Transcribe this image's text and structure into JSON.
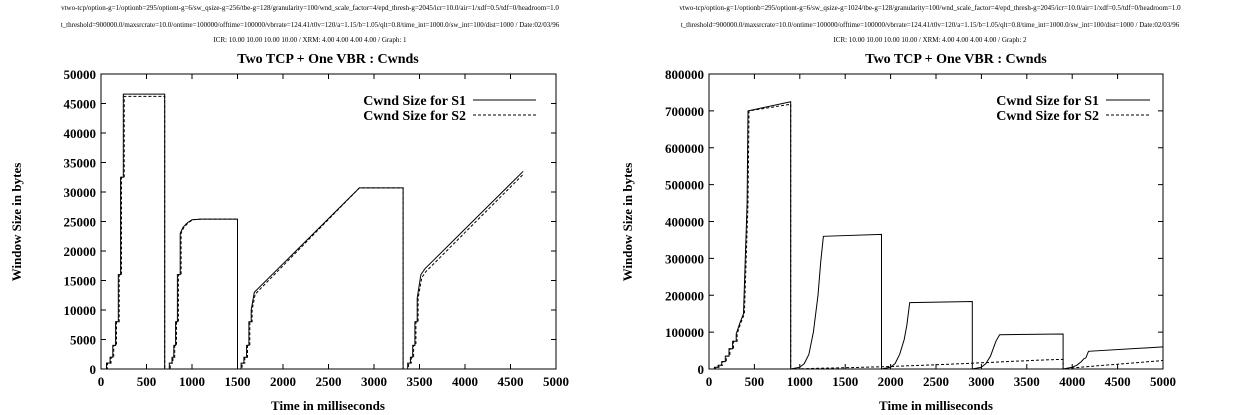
{
  "chart_data": [
    {
      "type": "line",
      "header_lines": [
        "vtwo-tcp/option-g=1/optionb=295/optiont-g=6/sw_qsize-g=256/tbe-g=128/granularity=100/wnd_scale_factor=4/epd_thresh-g=2045/icr=10.0/air=1/xdf=0.5/tdf=0/headroom=1.0",
        "t_threshold=900000.0/maxsrcrate=10.0/ontime=100000/offtime=100000/vbrrate=124.41/t0v=120/a=1.15/b=1.05/qlt=0.8/time_int=1000.0/sw_int=100/dist=1000 / Date:02/03/96",
        "ICR: 10.00 10.00 10.00 10.00 / XRM: 4.00 4.00 4.00 4.00 / Graph: 1"
      ],
      "title": "Two TCP + One VBR : Cwnds",
      "xlabel": "Time in milliseconds",
      "ylabel": "Window Size in bytes",
      "xlim": [
        0,
        5000
      ],
      "ylim": [
        0,
        50000
      ],
      "xticks": [
        0,
        500,
        1000,
        1500,
        2000,
        2500,
        3000,
        3500,
        4000,
        4500,
        5000
      ],
      "yticks": [
        0,
        5000,
        10000,
        15000,
        20000,
        25000,
        30000,
        35000,
        40000,
        45000,
        50000
      ],
      "legend_position": "top-right",
      "series": [
        {
          "name": "Cwnd Size for S1",
          "style": "solid",
          "x": [
            0,
            60,
            60,
            100,
            100,
            130,
            130,
            160,
            160,
            190,
            190,
            215,
            215,
            245,
            245,
            700,
            700,
            750,
            750,
            780,
            780,
            800,
            800,
            820,
            820,
            840,
            840,
            870,
            870,
            900,
            950,
            1000,
            1100,
            1500,
            1500,
            1540,
            1540,
            1570,
            1570,
            1600,
            1600,
            1625,
            1625,
            1650,
            1650,
            1685,
            2840,
            3320,
            3320,
            3370,
            3370,
            3400,
            3400,
            3425,
            3425,
            3450,
            3450,
            3475,
            3475,
            3515,
            3560,
            4640
          ],
          "y": [
            0,
            0,
            1000,
            1000,
            2000,
            2000,
            4000,
            4000,
            8000,
            8000,
            16000,
            16000,
            32500,
            32500,
            46600,
            46600,
            0,
            0,
            1000,
            1000,
            2000,
            2000,
            4000,
            4000,
            8000,
            8000,
            16000,
            16000,
            23000,
            24000,
            24800,
            25300,
            25400,
            25400,
            0,
            0,
            1000,
            1000,
            2000,
            2000,
            4000,
            4000,
            8000,
            8000,
            10000,
            13000,
            30700,
            30700,
            0,
            0,
            1000,
            1000,
            2000,
            2000,
            4000,
            4000,
            8000,
            8000,
            12000,
            16000,
            17000,
            33500
          ]
        },
        {
          "name": "Cwnd Size for S2",
          "style": "dashed",
          "x": [
            0,
            70,
            70,
            110,
            110,
            140,
            140,
            170,
            170,
            200,
            200,
            225,
            225,
            255,
            255,
            700,
            700,
            760,
            760,
            790,
            790,
            810,
            810,
            830,
            830,
            850,
            850,
            880,
            880,
            910,
            960,
            1010,
            1110,
            1500,
            1500,
            1550,
            1550,
            1580,
            1580,
            1610,
            1610,
            1635,
            1635,
            1660,
            1660,
            1695,
            2840,
            3320,
            3320,
            3380,
            3380,
            3410,
            3410,
            3435,
            3435,
            3460,
            3460,
            3485,
            3485,
            3525,
            3570,
            4640
          ],
          "y": [
            0,
            0,
            1000,
            1000,
            2000,
            2000,
            4000,
            4000,
            8000,
            8000,
            16000,
            16000,
            32500,
            32500,
            46200,
            46200,
            0,
            0,
            1000,
            1000,
            2000,
            2000,
            4000,
            4000,
            8000,
            8000,
            16000,
            16000,
            23000,
            24000,
            24800,
            25300,
            25400,
            25400,
            0,
            0,
            1000,
            1000,
            2000,
            2000,
            4000,
            4000,
            8000,
            8000,
            10000,
            12700,
            30700,
            30700,
            0,
            0,
            1000,
            1000,
            2000,
            2000,
            4000,
            4000,
            8000,
            8000,
            12000,
            15500,
            16500,
            33000
          ]
        }
      ]
    },
    {
      "type": "line",
      "header_lines": [
        "vtwo-tcp/option-g=1/optionb=295/optiont-g=6/sw_qsize-g=1024/tbe-g=128/granularity=100/wnd_scale_factor=4/epd_thresh-g=2045/icr=10.0/air=1/xdf=0.5/tdf=0/headroom=1.0",
        "t_threshold=900000.0/maxsrcrate=10.0/ontime=100000/offtime=100000/vbrrate=124.41/t0v=120/a=1.15/b=1.05/qlt=0.8/time_int=1000.0/sw_int=100/dist=1000 / Date:02/03/96",
        "ICR: 10.00 10.00 10.00 10.00 / XRM: 4.00 4.00 4.00 4.00 / Graph: 2"
      ],
      "title": "Two TCP + One VBR : Cwnds",
      "xlabel": "Time in milliseconds",
      "ylabel": "Window Size in bytes",
      "xlim": [
        0,
        5000
      ],
      "ylim": [
        0,
        800000
      ],
      "xticks": [
        0,
        500,
        1000,
        1500,
        2000,
        2500,
        3000,
        3500,
        4000,
        4500,
        5000
      ],
      "yticks": [
        0,
        100000,
        200000,
        300000,
        400000,
        500000,
        600000,
        700000,
        800000
      ],
      "legend_position": "top-right",
      "series": [
        {
          "name": "Cwnd Size for S1",
          "style": "solid",
          "x": [
            0,
            60,
            60,
            100,
            100,
            140,
            140,
            180,
            180,
            220,
            220,
            260,
            260,
            300,
            300,
            340,
            380,
            400,
            420,
            430,
            900,
            900,
            1000,
            1050,
            1100,
            1150,
            1200,
            1230,
            1260,
            1900,
            1900,
            2000,
            2050,
            2100,
            2150,
            2180,
            2210,
            2900,
            2900,
            3000,
            3050,
            3100,
            3130,
            3160,
            3200,
            3900,
            3900,
            4000,
            4050,
            4100,
            4130,
            4150,
            4180,
            5000
          ],
          "y": [
            0,
            0,
            5000,
            5000,
            10000,
            10000,
            20000,
            20000,
            35000,
            35000,
            55000,
            55000,
            75000,
            75000,
            95000,
            125000,
            150000,
            300000,
            450000,
            700000,
            725000,
            0,
            5000,
            15000,
            40000,
            100000,
            200000,
            290000,
            360000,
            365000,
            0,
            5000,
            15000,
            40000,
            80000,
            120000,
            180000,
            183000,
            0,
            5000,
            15000,
            35000,
            55000,
            75000,
            93000,
            95000,
            0,
            5000,
            10000,
            20000,
            28000,
            30000,
            48000,
            60000
          ]
        },
        {
          "name": "Cwnd Size for S2",
          "style": "dashed",
          "x": [
            0,
            70,
            70,
            110,
            110,
            150,
            150,
            190,
            190,
            230,
            230,
            270,
            270,
            310,
            310,
            350,
            390,
            410,
            430,
            440,
            900,
            900,
            1000,
            1100,
            1200,
            1300,
            1400,
            1500,
            1600,
            1700,
            1800,
            1900,
            2000,
            2200,
            2400,
            2600,
            2800,
            3000,
            3200,
            3400,
            3600,
            3800,
            3900,
            3900,
            4000,
            4200,
            4400,
            4600,
            4800,
            5000
          ],
          "y": [
            0,
            0,
            5000,
            5000,
            10000,
            10000,
            20000,
            20000,
            35000,
            35000,
            55000,
            55000,
            75000,
            75000,
            95000,
            125000,
            150000,
            300000,
            450000,
            700000,
            718000,
            0,
            600,
            1200,
            1800,
            2400,
            3000,
            3600,
            4200,
            4800,
            5400,
            6000,
            6800,
            8600,
            10500,
            12500,
            14600,
            16800,
            19000,
            21300,
            23600,
            25500,
            26000,
            0,
            3000,
            7000,
            11000,
            15000,
            19000,
            23000
          ]
        }
      ]
    }
  ]
}
